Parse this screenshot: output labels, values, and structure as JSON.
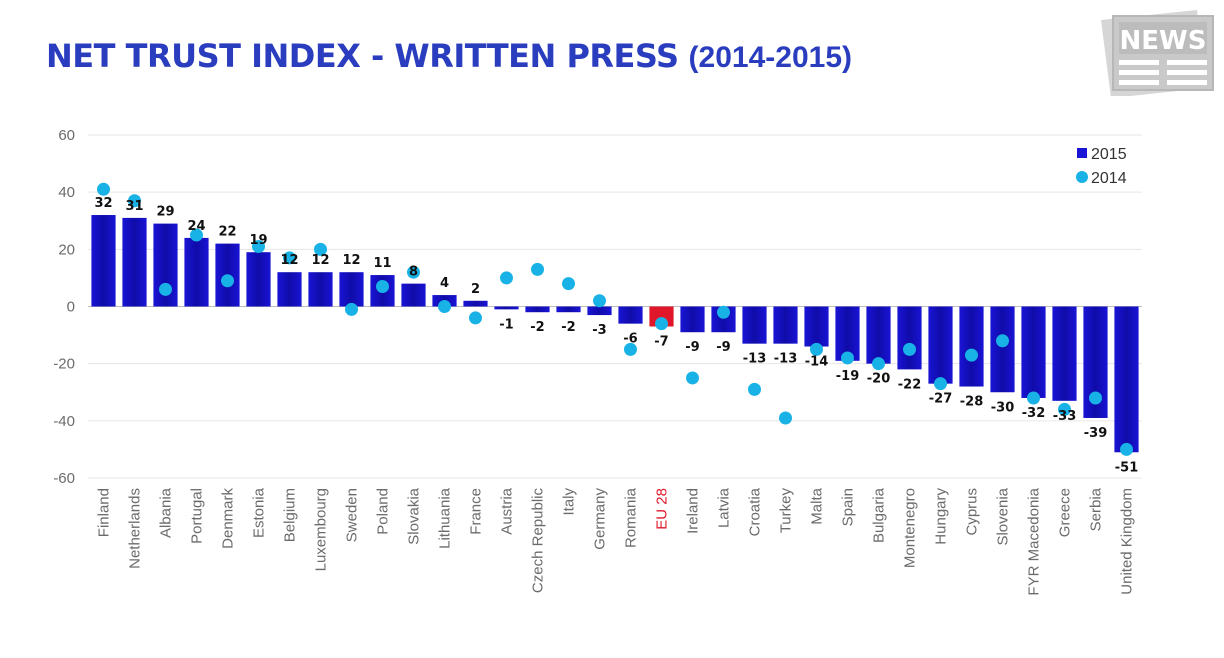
{
  "header": {
    "title": "NET TRUST INDEX - WRITTEN PRESS",
    "subtitle": "(2014-2015)",
    "logo_text": "NEWS"
  },
  "colors": {
    "title": "#2b3dbf",
    "bar_2015": "#1a14d6",
    "bar_highlight": "#e0172b",
    "dot_2014": "#18b2e6",
    "highlight_label": "#e0172b"
  },
  "chart_data": {
    "type": "bar",
    "title": "NET TRUST INDEX - WRITTEN PRESS (2014-2015)",
    "xlabel": "",
    "ylabel": "",
    "ylim": [
      -60,
      60
    ],
    "yticks": [
      "60",
      "40",
      "20",
      "0",
      "-20",
      "-40",
      "-60"
    ],
    "grid": true,
    "legend_position": "top-right",
    "categories": [
      "Finland",
      "Netherlands",
      "Albania",
      "Portugal",
      "Denmark",
      "Estonia",
      "Belgium",
      "Luxembourg",
      "Sweden",
      "Poland",
      "Slovakia",
      "Lithuania",
      "France",
      "Austria",
      "Czech Republic",
      "Italy",
      "Germany",
      "Romania",
      "EU 28",
      "Ireland",
      "Latvia",
      "Croatia",
      "Turkey",
      "Malta",
      "Spain",
      "Bulgaria",
      "Montenegro",
      "Hungary",
      "Cyprus",
      "Slovenia",
      "FYR Macedonia",
      "Greece",
      "Serbia",
      "United Kingdom"
    ],
    "highlight_category": "EU 28",
    "series": [
      {
        "name": "2015",
        "kind": "bar",
        "values": [
          32,
          31,
          29,
          24,
          22,
          19,
          12,
          12,
          12,
          11,
          8,
          4,
          2,
          -1,
          -2,
          -2,
          -3,
          -6,
          -7,
          -9,
          -9,
          -13,
          -13,
          -14,
          -19,
          -20,
          -22,
          -27,
          -28,
          -30,
          -32,
          -33,
          -39,
          -51
        ],
        "labels": [
          "32",
          "31",
          "29",
          "24",
          "22",
          "19",
          "12",
          "12",
          "12",
          "11",
          "8",
          "4",
          "2",
          "-1",
          "-2",
          "-2",
          "-3",
          "-6",
          "-7",
          "-9",
          "-9",
          "-13",
          "-13",
          "-14",
          "-19",
          "-20",
          "-22",
          "-27",
          "-28",
          "-30",
          "-32",
          "-33",
          "-39",
          "-51"
        ]
      },
      {
        "name": "2014",
        "kind": "dot",
        "values": [
          41,
          37,
          6,
          25,
          9,
          21,
          17,
          20,
          -1,
          7,
          12,
          0,
          -4,
          10,
          13,
          8,
          2,
          -15,
          -6,
          -25,
          -2,
          -29,
          -39,
          -15,
          -18,
          -20,
          -15,
          -27,
          -17,
          -12,
          -32,
          -36,
          -32,
          -50
        ]
      }
    ]
  }
}
